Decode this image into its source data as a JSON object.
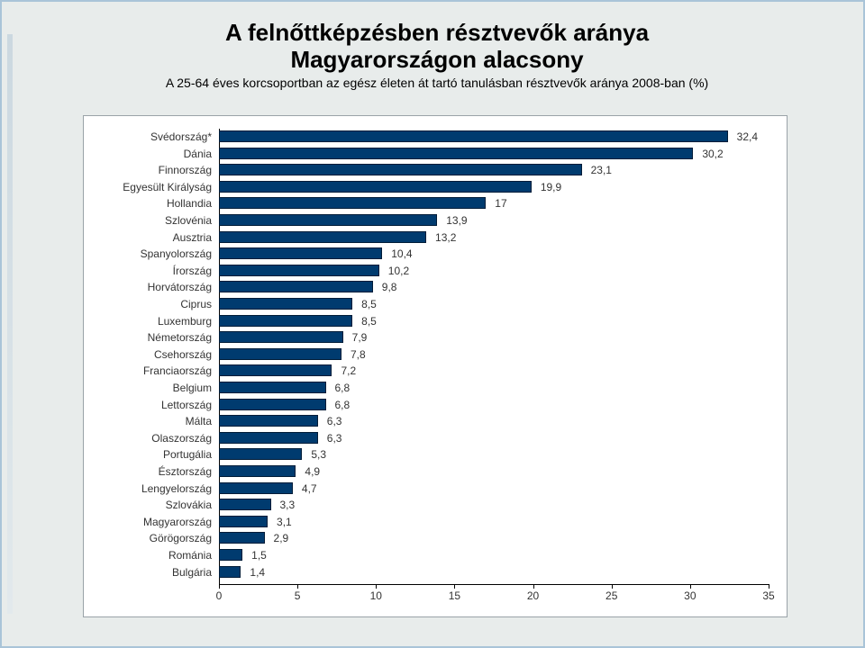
{
  "title_line1": "A felnőttképzésben résztvevők aránya",
  "title_line2": "Magyarországon alacsony",
  "subtitle": "A 25-64 éves korcsoportban az egész életen át tartó tanulásban résztvevők aránya 2008-ban (%)",
  "chart": {
    "type": "bar-horizontal",
    "background_color": "#ffffff",
    "border_color": "#9aa3a8",
    "bar_color": "#003b6f",
    "bar_border": "#001c38",
    "label_fontsize": 12,
    "value_fontsize": 12,
    "xlim": [
      0,
      35
    ],
    "xtick_step": 5,
    "xticks": [
      "0",
      "5",
      "10",
      "15",
      "20",
      "25",
      "30",
      "35"
    ],
    "categories": [
      "Svédország*",
      "Dánia",
      "Finnország",
      "Egyesült Királyság",
      "Hollandia",
      "Szlovénia",
      "Ausztria",
      "Spanyolország",
      "Írország",
      "Horvátország",
      "Ciprus",
      "Luxemburg",
      "Németország",
      "Csehország",
      "Franciaország",
      "Belgium",
      "Lettország",
      "Málta",
      "Olaszország",
      "Portugália",
      "Észtország",
      "Lengyelország",
      "Szlovákia",
      "Magyarország",
      "Görögország",
      "Románia",
      "Bulgária"
    ],
    "values": [
      32.4,
      30.2,
      23.1,
      19.9,
      17,
      13.9,
      13.2,
      10.4,
      10.2,
      9.8,
      8.5,
      8.5,
      7.9,
      7.8,
      7.2,
      6.8,
      6.8,
      6.3,
      6.3,
      5.3,
      4.9,
      4.7,
      3.3,
      3.1,
      2.9,
      1.5,
      1.4
    ],
    "value_labels": [
      "32,4",
      "30,2",
      "23,1",
      "19,9",
      "17",
      "13,9",
      "13,2",
      "10,4",
      "10,2",
      "9,8",
      "8,5",
      "8,5",
      "7,9",
      "7,8",
      "7,2",
      "6,8",
      "6,8",
      "6,3",
      "6,3",
      "5,3",
      "4,9",
      "4,7",
      "3,3",
      "3,1",
      "2,9",
      "1,5",
      "1,4"
    ]
  }
}
